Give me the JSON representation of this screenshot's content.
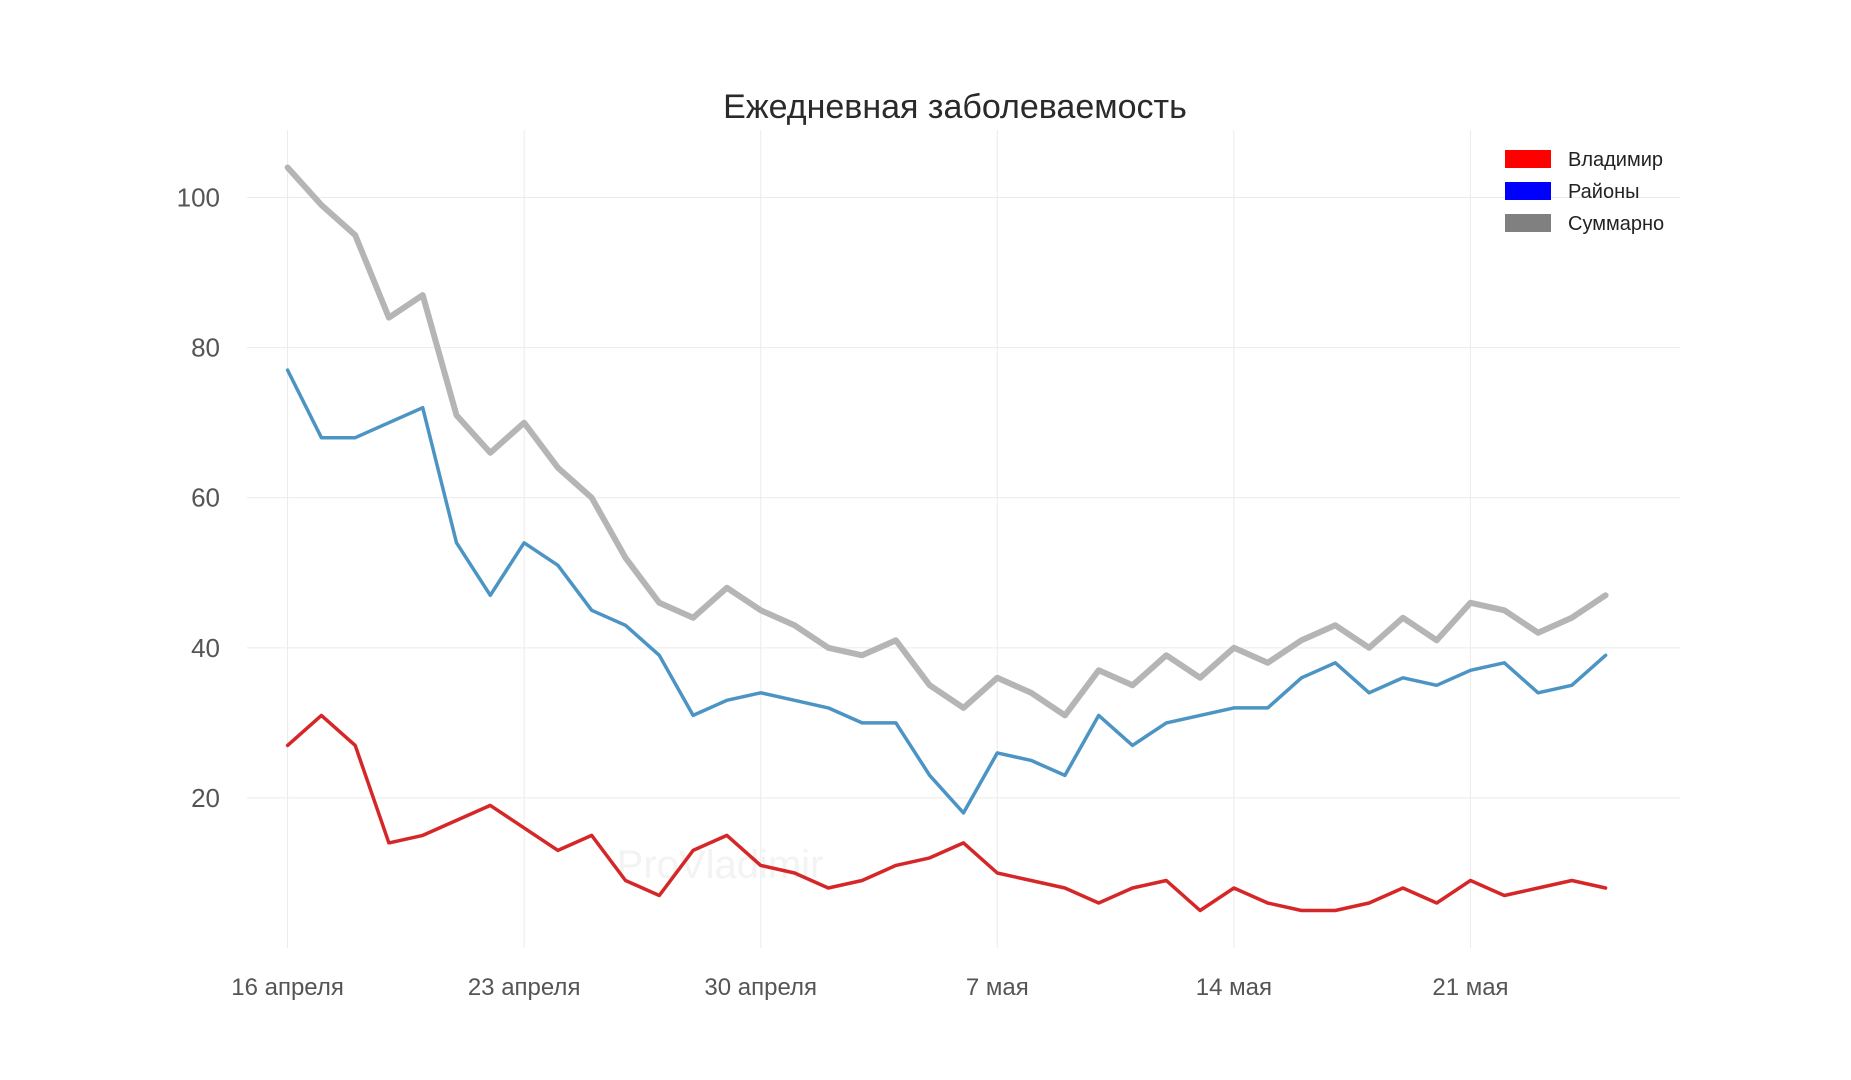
{
  "chart_data": {
    "type": "line",
    "title": "Ежедневная заболеваемость",
    "xlabel": "",
    "ylabel": "",
    "watermark": "ProVladimir",
    "x_tick_labels": [
      "16 апреля",
      "23 апреля",
      "30 апреля",
      "7 мая",
      "14 мая",
      "21 мая"
    ],
    "x_tick_days": [
      0,
      7,
      14,
      21,
      28,
      35
    ],
    "y_ticks": [
      20,
      40,
      60,
      80,
      100
    ],
    "ylim": [
      0,
      109
    ],
    "xlim": [
      -1.2,
      41.2
    ],
    "x_days": [
      0,
      1,
      2,
      3,
      4,
      5,
      6,
      7,
      8,
      9,
      10,
      11,
      12,
      13,
      14,
      15,
      16,
      17,
      18,
      19,
      20,
      21,
      22,
      23,
      24,
      25,
      26,
      27,
      28,
      29,
      30,
      31,
      32,
      33,
      34,
      35,
      36,
      37,
      38,
      39
    ],
    "grid": true,
    "legend_position": "top-right",
    "series": [
      {
        "name": "Владимир",
        "color": "#d62728",
        "legend_color": "#ff0000",
        "values": [
          27,
          31,
          27,
          14,
          15,
          17,
          19,
          16,
          13,
          15,
          9,
          7,
          13,
          15,
          11,
          10,
          8,
          9,
          11,
          12,
          14,
          10,
          9,
          8,
          6,
          8,
          9,
          5,
          8,
          6,
          5,
          5,
          6,
          8,
          6,
          9,
          7,
          8,
          9,
          8
        ]
      },
      {
        "name": "Районы",
        "color": "#4c94c4",
        "legend_color": "#0000ff",
        "values": [
          77,
          68,
          68,
          70,
          72,
          54,
          47,
          54,
          51,
          45,
          43,
          39,
          31,
          33,
          34,
          33,
          32,
          30,
          30,
          23,
          18,
          26,
          25,
          23,
          31,
          27,
          30,
          31,
          32,
          32,
          36,
          38,
          34,
          36,
          35,
          37,
          38,
          34,
          35,
          39
        ]
      },
      {
        "name": "Суммарно",
        "color": "#b5b5b5",
        "legend_color": "#808080",
        "values": [
          104,
          99,
          95,
          84,
          87,
          71,
          66,
          70,
          64,
          60,
          52,
          46,
          44,
          48,
          45,
          43,
          40,
          39,
          41,
          35,
          32,
          36,
          34,
          31,
          37,
          35,
          39,
          36,
          40,
          38,
          41,
          43,
          40,
          44,
          41,
          46,
          45,
          42,
          44,
          47
        ]
      }
    ]
  }
}
